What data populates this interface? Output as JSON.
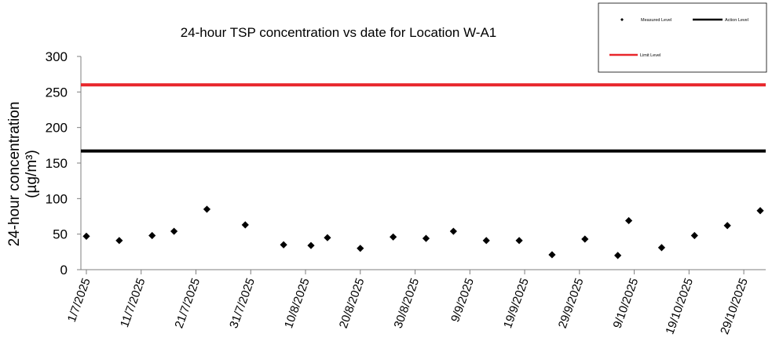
{
  "chart_data": {
    "type": "scatter",
    "title": "24-hour TSP concentration vs date for Location W-A1",
    "ylabel_line1": "24-hour concentration",
    "ylabel_line2": "(µg/m³)",
    "xlabel": "",
    "ylim": [
      0,
      300
    ],
    "yticks": [
      "0",
      "50",
      "100",
      "150",
      "200",
      "250",
      "300"
    ],
    "xlim": [
      "2025-06-30",
      "2025-11-02"
    ],
    "xticks": [
      {
        "date": "2025-07-01",
        "label": "1/7/2025"
      },
      {
        "date": "2025-07-11",
        "label": "11/7/2025"
      },
      {
        "date": "2025-07-21",
        "label": "21/7/2025"
      },
      {
        "date": "2025-07-31",
        "label": "31/7/2025"
      },
      {
        "date": "2025-08-10",
        "label": "10/8/2025"
      },
      {
        "date": "2025-08-20",
        "label": "20/8/2025"
      },
      {
        "date": "2025-08-30",
        "label": "30/8/2025"
      },
      {
        "date": "2025-09-09",
        "label": "9/9/2025"
      },
      {
        "date": "2025-09-19",
        "label": "19/9/2025"
      },
      {
        "date": "2025-09-29",
        "label": "29/9/2025"
      },
      {
        "date": "2025-10-09",
        "label": "9/10/2025"
      },
      {
        "date": "2025-10-19",
        "label": "19/10/2025"
      },
      {
        "date": "2025-10-29",
        "label": "29/10/2025"
      }
    ],
    "grid": false,
    "legend_position": "top-right",
    "series": [
      {
        "name": "Measured Level",
        "marker": "diamond",
        "color": "#000000",
        "points": [
          {
            "x": "2025-07-01",
            "y": 47
          },
          {
            "x": "2025-07-07",
            "y": 41
          },
          {
            "x": "2025-07-13",
            "y": 48
          },
          {
            "x": "2025-07-17",
            "y": 54
          },
          {
            "x": "2025-07-23",
            "y": 85
          },
          {
            "x": "2025-07-30",
            "y": 63
          },
          {
            "x": "2025-08-06",
            "y": 35
          },
          {
            "x": "2025-08-11",
            "y": 34
          },
          {
            "x": "2025-08-14",
            "y": 45
          },
          {
            "x": "2025-08-20",
            "y": 30
          },
          {
            "x": "2025-08-26",
            "y": 46
          },
          {
            "x": "2025-09-01",
            "y": 44
          },
          {
            "x": "2025-09-06",
            "y": 54
          },
          {
            "x": "2025-09-12",
            "y": 41
          },
          {
            "x": "2025-09-18",
            "y": 41
          },
          {
            "x": "2025-09-24",
            "y": 21
          },
          {
            "x": "2025-09-30",
            "y": 43
          },
          {
            "x": "2025-10-06",
            "y": 20
          },
          {
            "x": "2025-10-08",
            "y": 69
          },
          {
            "x": "2025-10-14",
            "y": 31
          },
          {
            "x": "2025-10-20",
            "y": 48
          },
          {
            "x": "2025-10-26",
            "y": 62
          },
          {
            "x": "2025-11-01",
            "y": 83
          }
        ]
      },
      {
        "name": "Action Level",
        "type": "line",
        "color": "#000000",
        "y": 167
      },
      {
        "name": "Limit Level",
        "type": "line",
        "color": "#e8262b",
        "y": 260
      }
    ]
  }
}
